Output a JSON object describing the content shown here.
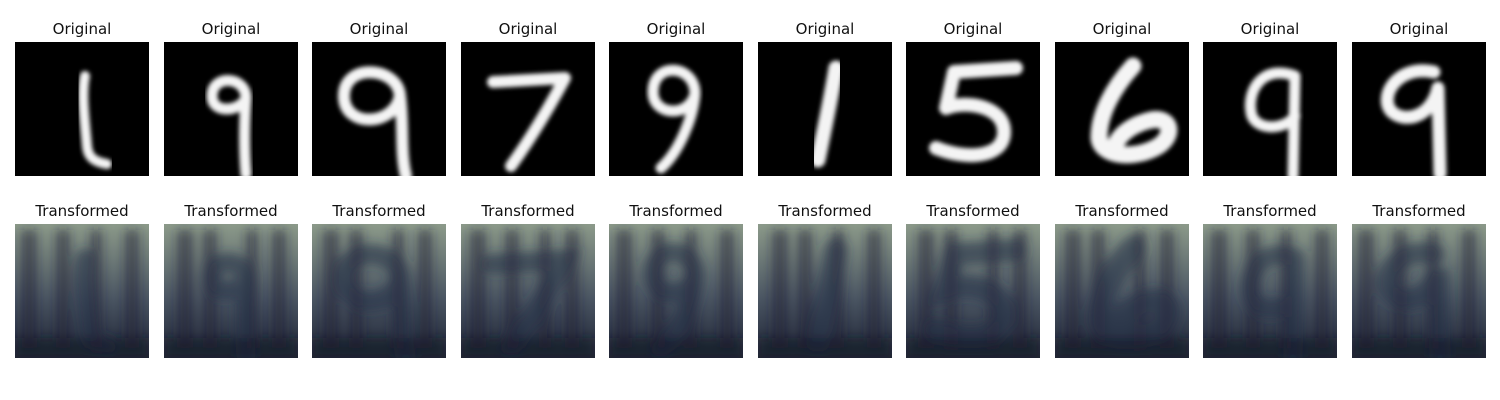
{
  "labels": {
    "original": "Original",
    "transformed": "Transformed"
  },
  "samples": [
    {
      "digit": "1"
    },
    {
      "digit": "9"
    },
    {
      "digit": "9"
    },
    {
      "digit": "7"
    },
    {
      "digit": "9"
    },
    {
      "digit": "1"
    },
    {
      "digit": "5"
    },
    {
      "digit": "6"
    },
    {
      "digit": "9"
    },
    {
      "digit": "9"
    }
  ],
  "colors": {
    "original_bg": "#000000",
    "original_stroke": "#f4f4f4",
    "transformed_base": "#4b5663",
    "transformed_dark": "#1e2436",
    "transformed_light": "#8c9a8a"
  }
}
